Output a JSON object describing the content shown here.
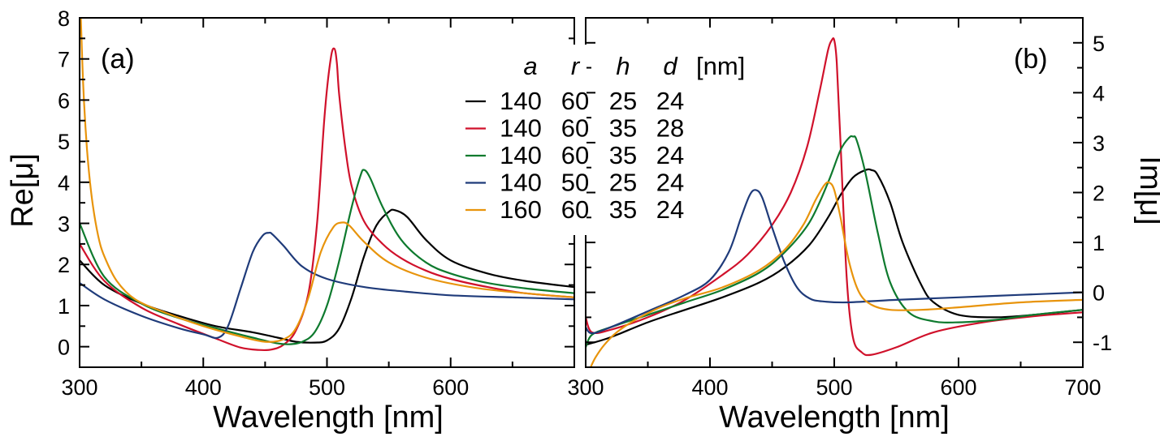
{
  "colors": {
    "black": "#000000",
    "red": "#d0112b",
    "green": "#0e7a2e",
    "blue": "#1f3b7a",
    "orange": "#e8940c"
  },
  "legend": {
    "headers": [
      "a",
      "r",
      "h",
      "d"
    ],
    "unit": "[nm]",
    "rows": [
      {
        "a": "140",
        "r": "60",
        "h": "25",
        "d": "24",
        "color": "#000000"
      },
      {
        "a": "140",
        "r": "60",
        "h": "35",
        "d": "28",
        "color": "#d0112b"
      },
      {
        "a": "140",
        "r": "60",
        "h": "35",
        "d": "24",
        "color": "#0e7a2e"
      },
      {
        "a": "140",
        "r": "50",
        "h": "25",
        "d": "24",
        "color": "#1f3b7a"
      },
      {
        "a": "160",
        "r": "60",
        "h": "35",
        "d": "24",
        "color": "#e8940c"
      }
    ]
  },
  "chart_data": [
    {
      "type": "line",
      "panel": "(a)",
      "xlabel": "Wavelength [nm]",
      "ylabel": "Re[μ]",
      "xlim": [
        300,
        700
      ],
      "ylim": [
        -0.5,
        8
      ],
      "xticks": [
        "300",
        "400",
        "500",
        "600"
      ],
      "yticks": [
        "0",
        "1",
        "2",
        "3",
        "4",
        "5",
        "6",
        "7",
        "8"
      ],
      "series": [
        {
          "color": "#000000",
          "x": [
            300,
            320,
            350,
            380,
            410,
            440,
            460,
            475,
            490,
            500,
            510,
            520,
            530,
            540,
            550,
            555,
            565,
            580,
            600,
            630,
            660,
            700
          ],
          "y": [
            2.1,
            1.5,
            1.05,
            0.75,
            0.5,
            0.35,
            0.22,
            0.12,
            0.1,
            0.15,
            0.45,
            1.2,
            2.2,
            2.95,
            3.28,
            3.32,
            3.15,
            2.6,
            2.1,
            1.78,
            1.6,
            1.45
          ]
        },
        {
          "color": "#d0112b",
          "x": [
            300,
            320,
            350,
            380,
            410,
            430,
            445,
            455,
            465,
            475,
            485,
            492,
            498,
            503,
            506,
            508,
            510,
            515,
            520,
            530,
            545,
            560,
            580,
            600,
            630,
            660,
            700
          ],
          "y": [
            2.5,
            1.6,
            0.95,
            0.55,
            0.2,
            -0.02,
            -0.08,
            -0.07,
            0.05,
            0.4,
            1.3,
            3.0,
            5.6,
            7.0,
            7.25,
            6.9,
            6.1,
            4.8,
            3.9,
            3.05,
            2.5,
            2.15,
            1.85,
            1.65,
            1.45,
            1.3,
            1.2
          ]
        },
        {
          "color": "#0e7a2e",
          "x": [
            300,
            320,
            350,
            380,
            410,
            440,
            460,
            470,
            480,
            490,
            500,
            510,
            520,
            527,
            530,
            535,
            545,
            560,
            580,
            600,
            630,
            660,
            700
          ],
          "y": [
            3.0,
            1.7,
            1.05,
            0.7,
            0.45,
            0.22,
            0.08,
            0.06,
            0.12,
            0.35,
            1.0,
            2.1,
            3.4,
            4.15,
            4.3,
            4.1,
            3.4,
            2.6,
            2.05,
            1.78,
            1.55,
            1.42,
            1.3
          ]
        },
        {
          "color": "#1f3b7a",
          "x": [
            300,
            320,
            350,
            380,
            400,
            412,
            420,
            430,
            440,
            448,
            453,
            456,
            465,
            480,
            500,
            530,
            560,
            600,
            650,
            700
          ],
          "y": [
            1.55,
            1.15,
            0.75,
            0.45,
            0.3,
            0.22,
            0.5,
            1.4,
            2.3,
            2.7,
            2.77,
            2.73,
            2.45,
            1.95,
            1.65,
            1.45,
            1.35,
            1.25,
            1.2,
            1.15
          ]
        },
        {
          "color": "#e8940c",
          "x": [
            301,
            303,
            306,
            310,
            315,
            320,
            330,
            345,
            370,
            400,
            430,
            450,
            465,
            475,
            485,
            495,
            505,
            512,
            518,
            530,
            550,
            580,
            620,
            660,
            700
          ],
          "y": [
            8.0,
            6.3,
            4.8,
            3.6,
            2.7,
            2.2,
            1.6,
            1.15,
            0.82,
            0.5,
            0.25,
            0.12,
            0.18,
            0.45,
            1.2,
            2.3,
            2.9,
            3.02,
            2.95,
            2.55,
            2.05,
            1.68,
            1.43,
            1.3,
            1.2
          ]
        }
      ]
    },
    {
      "type": "line",
      "panel": "(b)",
      "xlabel": "Wavelength [nm]",
      "ylabel": "Im[μ]",
      "xlim": [
        300,
        700
      ],
      "ylim": [
        -1.5,
        5.5
      ],
      "xticks": [
        "300",
        "400",
        "500",
        "600",
        "700"
      ],
      "yticks": [
        "-1",
        "0",
        "1",
        "2",
        "3",
        "4",
        "5"
      ],
      "series": [
        {
          "color": "#000000",
          "x": [
            300,
            320,
            350,
            380,
            410,
            440,
            460,
            480,
            495,
            505,
            515,
            525,
            530,
            535,
            545,
            555,
            570,
            580,
            600,
            630,
            660,
            700
          ],
          "y": [
            -1.05,
            -0.9,
            -0.6,
            -0.35,
            -0.1,
            0.2,
            0.5,
            0.95,
            1.5,
            1.95,
            2.3,
            2.45,
            2.45,
            2.35,
            1.8,
            1.0,
            0.15,
            -0.2,
            -0.45,
            -0.5,
            -0.45,
            -0.35
          ]
        },
        {
          "color": "#d0112b",
          "x": [
            300,
            305,
            320,
            350,
            380,
            410,
            430,
            450,
            465,
            478,
            488,
            495,
            498,
            500,
            502,
            505,
            510,
            515,
            522,
            530,
            550,
            580,
            620,
            660,
            700
          ],
          "y": [
            -0.5,
            -0.8,
            -0.75,
            -0.5,
            -0.15,
            0.35,
            0.75,
            1.35,
            2.0,
            2.9,
            4.0,
            4.85,
            5.05,
            5.05,
            4.6,
            3.0,
            0.3,
            -0.9,
            -1.2,
            -1.25,
            -1.1,
            -0.8,
            -0.6,
            -0.48,
            -0.4
          ]
        },
        {
          "color": "#0e7a2e",
          "x": [
            300,
            305,
            320,
            350,
            380,
            410,
            440,
            460,
            480,
            495,
            505,
            512,
            515,
            518,
            525,
            535,
            545,
            560,
            580,
            600,
            630,
            660,
            700
          ],
          "y": [
            -1.1,
            -0.85,
            -0.7,
            -0.45,
            -0.2,
            0.05,
            0.4,
            0.8,
            1.4,
            2.2,
            2.85,
            3.1,
            3.12,
            3.05,
            2.4,
            1.2,
            0.2,
            -0.4,
            -0.58,
            -0.6,
            -0.55,
            -0.45,
            -0.35
          ]
        },
        {
          "color": "#1f3b7a",
          "x": [
            300,
            305,
            320,
            350,
            380,
            400,
            415,
            425,
            432,
            437,
            442,
            450,
            460,
            470,
            480,
            490,
            510,
            550,
            600,
            650,
            700
          ],
          "y": [
            -0.7,
            -0.82,
            -0.7,
            -0.38,
            -0.05,
            0.25,
            0.8,
            1.5,
            1.95,
            2.05,
            1.9,
            1.3,
            0.6,
            0.1,
            -0.12,
            -0.18,
            -0.2,
            -0.15,
            -0.1,
            -0.05,
            0.0
          ]
        },
        {
          "color": "#e8940c",
          "x": [
            304,
            308,
            315,
            325,
            340,
            360,
            380,
            410,
            440,
            460,
            475,
            485,
            492,
            496,
            500,
            505,
            512,
            520,
            530,
            545,
            570,
            600,
            650,
            700
          ],
          "y": [
            -1.5,
            -1.3,
            -1.05,
            -0.8,
            -0.55,
            -0.3,
            -0.12,
            0.1,
            0.45,
            0.85,
            1.35,
            1.85,
            2.15,
            2.2,
            2.05,
            1.5,
            0.6,
            0.0,
            -0.25,
            -0.35,
            -0.35,
            -0.3,
            -0.2,
            -0.15
          ]
        }
      ]
    }
  ]
}
